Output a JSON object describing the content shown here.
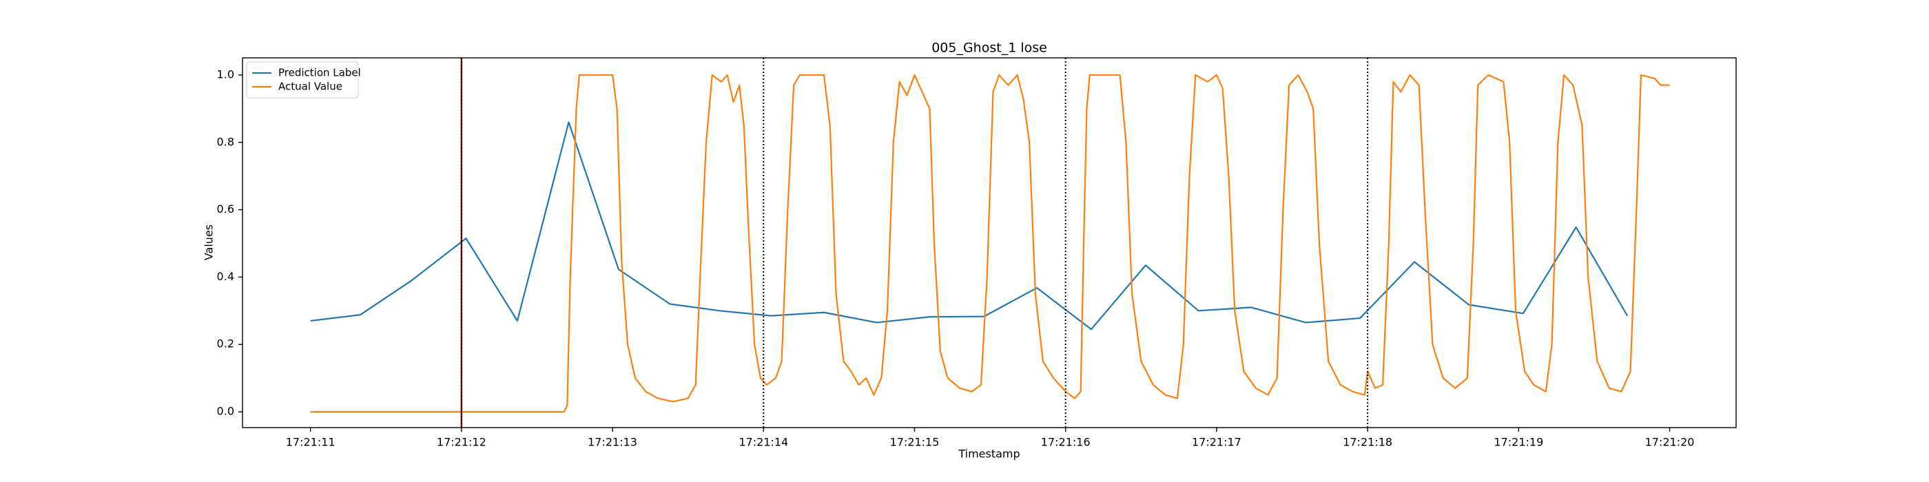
{
  "chart_data": {
    "type": "line",
    "title": "005_Ghost_1 lose",
    "xlabel": "Timestamp",
    "ylabel": "Values",
    "xlim": [
      10.55,
      20.44
    ],
    "ylim": [
      -0.047,
      1.051
    ],
    "xticks": [
      {
        "value": 11,
        "label": "17:21:11"
      },
      {
        "value": 12,
        "label": "17:21:12"
      },
      {
        "value": 13,
        "label": "17:21:13"
      },
      {
        "value": 14,
        "label": "17:21:14"
      },
      {
        "value": 15,
        "label": "17:21:15"
      },
      {
        "value": 16,
        "label": "17:21:16"
      },
      {
        "value": 17,
        "label": "17:21:17"
      },
      {
        "value": 18,
        "label": "17:21:18"
      },
      {
        "value": 19,
        "label": "17:21:19"
      },
      {
        "value": 20,
        "label": "17:21:20"
      }
    ],
    "yticks": [
      {
        "value": 0,
        "label": "0.0"
      },
      0.2,
      0.4,
      0.6,
      0.8,
      {
        "value": 1,
        "label": "1.0"
      }
    ],
    "legend": "upper left",
    "grid": false,
    "vlines": [
      {
        "x": 12,
        "color": "#8b0000",
        "style": "solid"
      },
      {
        "x": 12,
        "color": "#000000",
        "style": "dotted"
      },
      {
        "x": 14,
        "color": "#000000",
        "style": "dotted"
      },
      {
        "x": 16,
        "color": "#000000",
        "style": "dotted"
      },
      {
        "x": 18,
        "color": "#000000",
        "style": "dotted"
      }
    ],
    "series": [
      {
        "name": "Prediction Label",
        "color": "#1f77b4",
        "x": [
          11.0,
          11.33,
          11.67,
          12.03,
          12.37,
          12.71,
          13.04,
          13.38,
          13.71,
          14.05,
          14.4,
          14.75,
          15.1,
          15.46,
          15.81,
          16.17,
          16.53,
          16.88,
          17.23,
          17.59,
          17.95,
          18.31,
          18.67,
          19.03,
          19.38,
          19.72
        ],
        "values": [
          0.27,
          0.288,
          0.39,
          0.515,
          0.27,
          0.86,
          0.423,
          0.32,
          0.3,
          0.285,
          0.295,
          0.265,
          0.282,
          0.283,
          0.368,
          0.245,
          0.435,
          0.3,
          0.31,
          0.265,
          0.278,
          0.445,
          0.318,
          0.292,
          0.548,
          0.285
        ]
      },
      {
        "name": "Actual Value",
        "color": "#ff7f0e",
        "x": [
          11.0,
          12.68,
          12.7,
          12.72,
          12.76,
          12.78,
          13.0,
          13.03,
          13.06,
          13.1,
          13.15,
          13.22,
          13.3,
          13.4,
          13.5,
          13.55,
          13.58,
          13.62,
          13.66,
          13.72,
          13.76,
          13.8,
          13.84,
          13.87,
          13.9,
          13.94,
          13.98,
          14.02,
          14.08,
          14.12,
          14.16,
          14.2,
          14.24,
          14.4,
          14.44,
          14.48,
          14.53,
          14.58,
          14.63,
          14.68,
          14.73,
          14.78,
          14.82,
          14.86,
          14.9,
          14.95,
          15.0,
          15.05,
          15.1,
          15.13,
          15.17,
          15.22,
          15.3,
          15.38,
          15.44,
          15.48,
          15.52,
          15.56,
          15.62,
          15.68,
          15.72,
          15.76,
          15.8,
          15.85,
          15.92,
          16.0,
          16.06,
          16.1,
          16.12,
          16.14,
          16.16,
          16.36,
          16.4,
          16.44,
          16.5,
          16.58,
          16.66,
          16.74,
          16.78,
          16.82,
          16.86,
          16.94,
          17.0,
          17.04,
          17.08,
          17.12,
          17.18,
          17.26,
          17.34,
          17.4,
          17.44,
          17.48,
          17.54,
          17.6,
          17.64,
          17.68,
          17.74,
          17.82,
          17.9,
          17.98,
          18.0,
          18.05,
          18.1,
          18.14,
          18.17,
          18.22,
          18.28,
          18.34,
          18.38,
          18.43,
          18.5,
          18.58,
          18.66,
          18.7,
          18.73,
          18.8,
          18.9,
          18.94,
          18.98,
          19.04,
          19.1,
          19.18,
          19.22,
          19.26,
          19.3,
          19.36,
          19.42,
          19.46,
          19.52,
          19.6,
          19.68,
          19.74,
          19.78,
          19.81,
          19.9,
          19.94,
          20.0
        ],
        "values": [
          0,
          0,
          0.02,
          0.4,
          0.9,
          1,
          1,
          0.9,
          0.45,
          0.2,
          0.1,
          0.06,
          0.04,
          0.03,
          0.04,
          0.08,
          0.4,
          0.8,
          1,
          0.98,
          1,
          0.92,
          0.97,
          0.85,
          0.55,
          0.2,
          0.1,
          0.08,
          0.1,
          0.15,
          0.6,
          0.97,
          1,
          1,
          0.85,
          0.35,
          0.15,
          0.12,
          0.08,
          0.1,
          0.05,
          0.1,
          0.3,
          0.8,
          0.98,
          0.94,
          1,
          0.95,
          0.9,
          0.5,
          0.18,
          0.1,
          0.07,
          0.06,
          0.08,
          0.4,
          0.95,
          1,
          0.97,
          1,
          0.93,
          0.8,
          0.35,
          0.15,
          0.1,
          0.06,
          0.04,
          0.06,
          0.5,
          0.9,
          1,
          1,
          0.8,
          0.35,
          0.15,
          0.08,
          0.05,
          0.04,
          0.2,
          0.7,
          1,
          0.98,
          1,
          0.96,
          0.7,
          0.3,
          0.12,
          0.07,
          0.05,
          0.1,
          0.6,
          0.97,
          1,
          0.95,
          0.9,
          0.5,
          0.15,
          0.08,
          0.06,
          0.05,
          0.12,
          0.07,
          0.08,
          0.5,
          0.98,
          0.95,
          1,
          0.97,
          0.6,
          0.2,
          0.1,
          0.07,
          0.1,
          0.5,
          0.97,
          1,
          0.98,
          0.8,
          0.3,
          0.12,
          0.08,
          0.06,
          0.2,
          0.8,
          1,
          0.97,
          0.85,
          0.4,
          0.15,
          0.07,
          0.06,
          0.12,
          0.6,
          1,
          0.99,
          0.97,
          0.97
        ]
      }
    ]
  }
}
